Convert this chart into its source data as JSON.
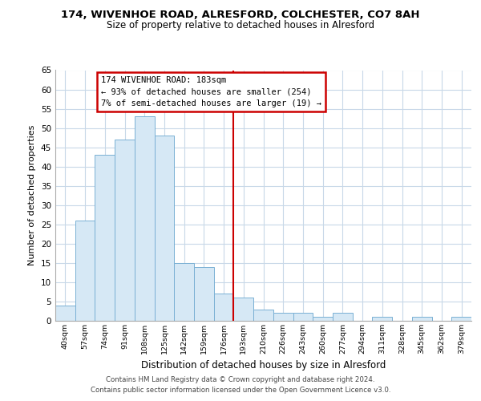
{
  "title": "174, WIVENHOE ROAD, ALRESFORD, COLCHESTER, CO7 8AH",
  "subtitle": "Size of property relative to detached houses in Alresford",
  "xlabel": "Distribution of detached houses by size in Alresford",
  "ylabel": "Number of detached properties",
  "bin_labels": [
    "40sqm",
    "57sqm",
    "74sqm",
    "91sqm",
    "108sqm",
    "125sqm",
    "142sqm",
    "159sqm",
    "176sqm",
    "193sqm",
    "210sqm",
    "226sqm",
    "243sqm",
    "260sqm",
    "277sqm",
    "294sqm",
    "311sqm",
    "328sqm",
    "345sqm",
    "362sqm",
    "379sqm"
  ],
  "bar_heights": [
    4,
    26,
    43,
    47,
    53,
    48,
    15,
    14,
    7,
    6,
    3,
    2,
    2,
    1,
    2,
    0,
    1,
    0,
    1,
    0,
    1
  ],
  "bar_color": "#d6e8f5",
  "bar_edge_color": "#7ab0d4",
  "vline_color": "#cc0000",
  "ylim": [
    0,
    65
  ],
  "yticks": [
    0,
    5,
    10,
    15,
    20,
    25,
    30,
    35,
    40,
    45,
    50,
    55,
    60,
    65
  ],
  "annotation_title": "174 WIVENHOE ROAD: 183sqm",
  "annotation_line1": "← 93% of detached houses are smaller (254)",
  "annotation_line2": "7% of semi-detached houses are larger (19) →",
  "annotation_box_color": "#ffffff",
  "annotation_box_edge": "#cc0000",
  "footer_line1": "Contains HM Land Registry data © Crown copyright and database right 2024.",
  "footer_line2": "Contains public sector information licensed under the Open Government Licence v3.0.",
  "background_color": "#ffffff",
  "grid_color": "#c8d8e8",
  "spine_color": "#aaaaaa"
}
